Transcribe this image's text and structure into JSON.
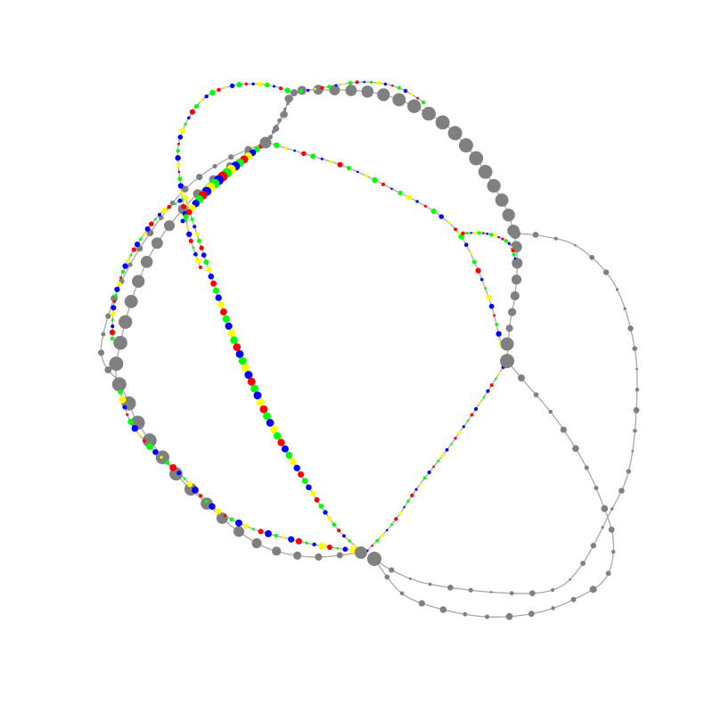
{
  "palette": {
    "background": "#ffffff",
    "edge": "#a8a8a8",
    "gray": "#808080",
    "blue": "#0000ff",
    "red": "#ff0000",
    "green": "#00ff00",
    "yellow": "#ffff00"
  },
  "node_pattern": [
    "blue",
    "yellow",
    "green",
    "red",
    "blue",
    "green",
    "yellow",
    "blue",
    "red",
    "green",
    "blue",
    "yellow",
    "red",
    "green"
  ]
}
